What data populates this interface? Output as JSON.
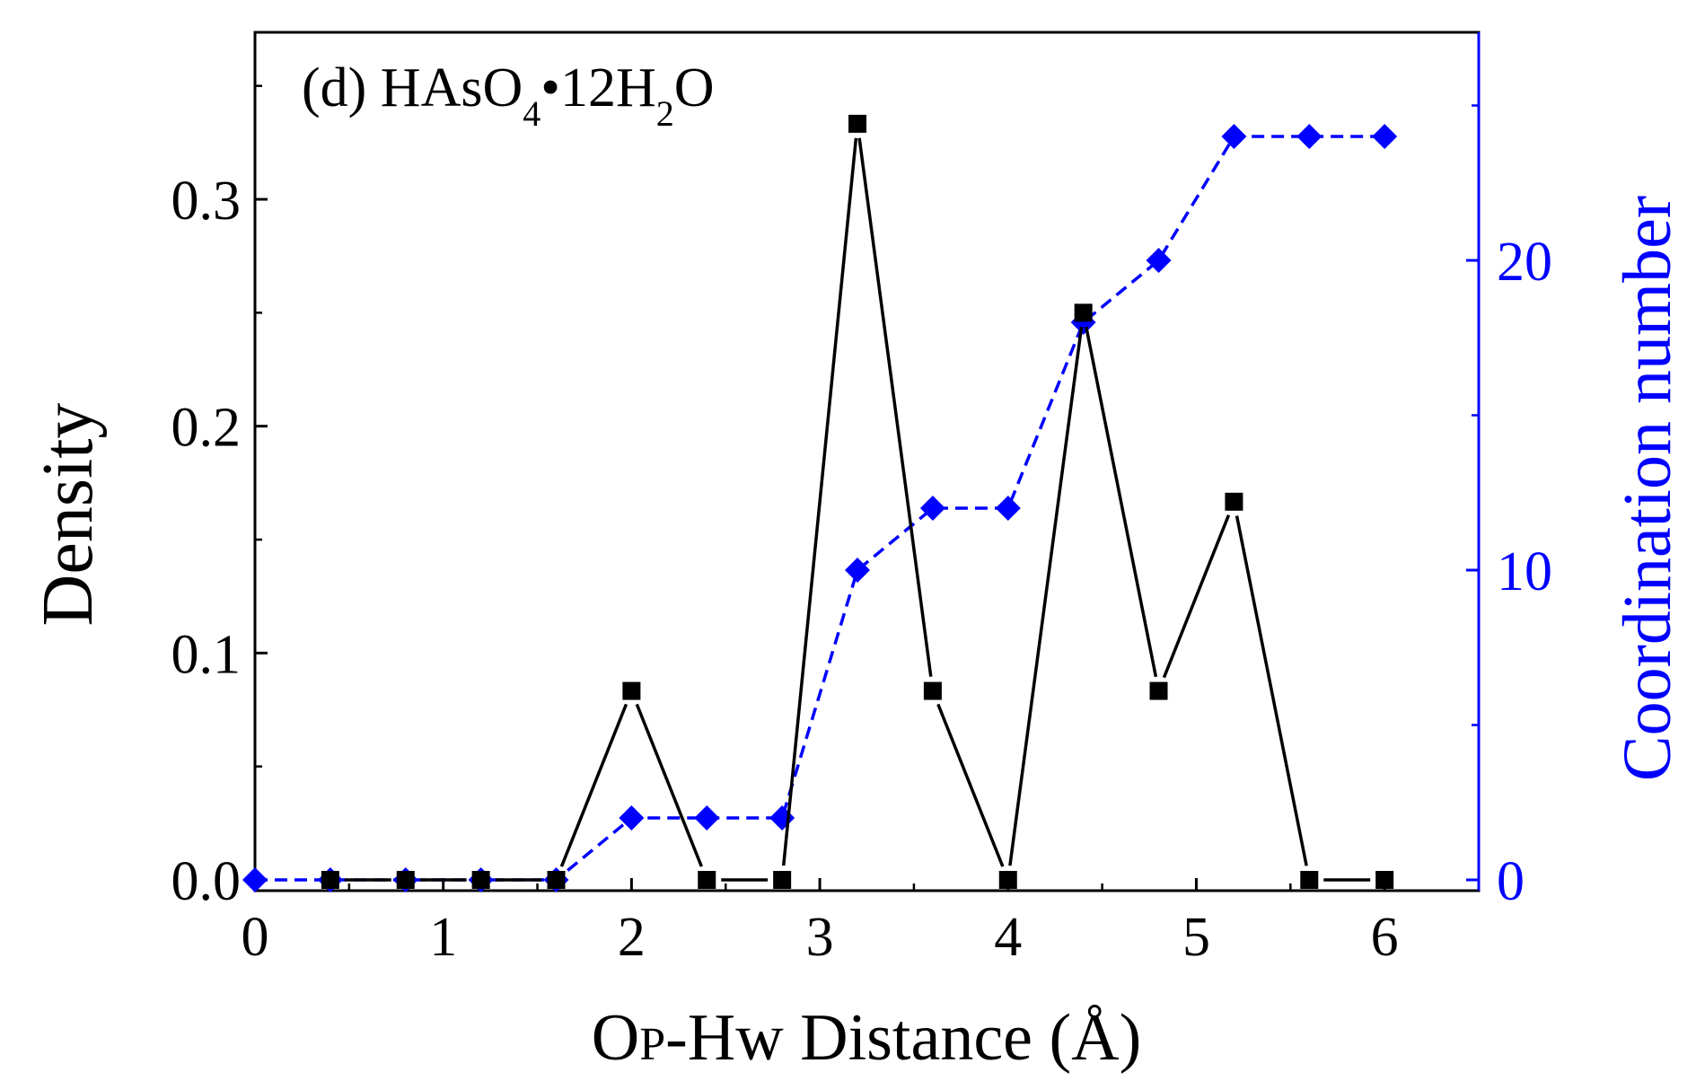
{
  "chart_data": {
    "type": "line",
    "panel_label": "(d) HAsO",
    "formula_sub1": "4",
    "formula_dot": "•",
    "formula_mid": "12H",
    "formula_sub2": "2",
    "formula_end": "O",
    "xlabel_part1": "O",
    "xlabel_sub": "P",
    "xlabel_part2": "-Hw Distance (Å)",
    "ylabel_left": "Density",
    "ylabel_right": "Coordination number",
    "xlim": [
      0,
      6.5
    ],
    "ylim_left": [
      0,
      0.375
    ],
    "ylim_right": [
      0,
      27
    ],
    "x_ticks": [
      0,
      1,
      2,
      3,
      4,
      5,
      6
    ],
    "x_tick_labels": [
      "0",
      "1",
      "2",
      "3",
      "4",
      "5",
      "6"
    ],
    "y_left_ticks": [
      0.0,
      0.1,
      0.2,
      0.3
    ],
    "y_left_tick_labels": [
      "0.0",
      "0.1",
      "0.2",
      "0.3"
    ],
    "y_right_ticks": [
      0,
      10,
      20
    ],
    "y_right_tick_labels": [
      "0",
      "10",
      "20"
    ],
    "colors": {
      "density": "#000000",
      "coordination": "#0000ff",
      "right_axis": "#0000ff"
    },
    "series": [
      {
        "axis": "left",
        "marker": "square",
        "line": "solid",
        "x": [
          0.4,
          0.8,
          1.2,
          1.6,
          2.0,
          2.4,
          2.8,
          3.2,
          3.6,
          4.0,
          4.4,
          4.8,
          5.2,
          5.6,
          6.0
        ],
        "values": [
          0.0,
          0.0,
          0.0,
          0.0,
          0.0833,
          0.0,
          0.0,
          0.3333,
          0.0833,
          0.0,
          0.25,
          0.0833,
          0.1667,
          0.0,
          0.0
        ]
      },
      {
        "axis": "right",
        "marker": "diamond",
        "line": "dashed",
        "x": [
          0.0,
          0.4,
          0.8,
          1.2,
          1.6,
          2.0,
          2.4,
          2.8,
          3.2,
          3.6,
          4.0,
          4.4,
          4.8,
          5.2,
          5.6,
          6.0
        ],
        "values": [
          0,
          0,
          0,
          0,
          0,
          2,
          2,
          2,
          10,
          12,
          12,
          18,
          20,
          24,
          24,
          24
        ]
      }
    ]
  }
}
